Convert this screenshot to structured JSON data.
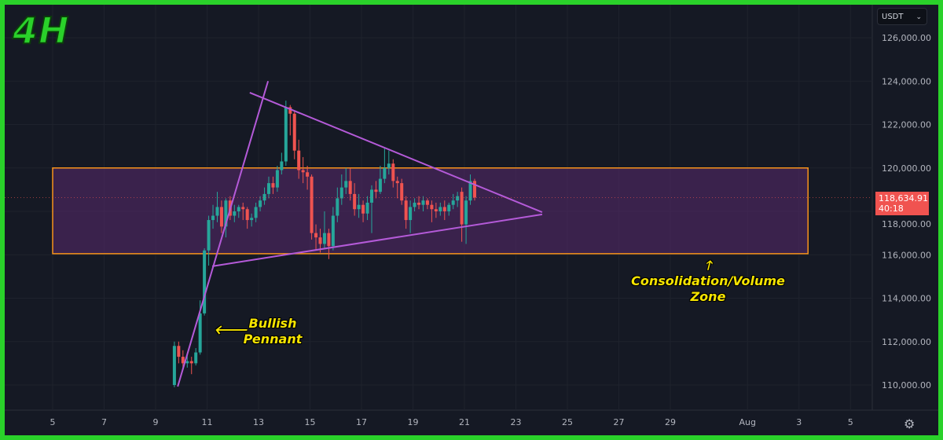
{
  "timeframe_label": "4H",
  "currency_selector": {
    "value": "USDT",
    "icon": "chevron-down-icon"
  },
  "price_badge": {
    "price": "118,634.91",
    "countdown": "40:18",
    "color": "#f05350"
  },
  "settings_icon": "gear-icon",
  "annotations": {
    "pennant": "Bullish Pennant",
    "zone_line1": "Consolidation/Volume",
    "zone_line2": "Zone"
  },
  "colors": {
    "up": "#26a69a",
    "down": "#ef5350",
    "pennant_lines": "#b45ad8",
    "zone_border": "#f7931a",
    "zone_fill": "#5a2a6e",
    "label": "#2ad12a",
    "annotation": "#f5e400"
  },
  "chart_data": {
    "type": "candlestick",
    "title": "",
    "ylim": [
      109500,
      127000
    ],
    "xlim": [
      3.1,
      36.5
    ],
    "y_ticks": [
      {
        "value": 110000,
        "label": "110,000.00"
      },
      {
        "value": 112000,
        "label": "112,000.00"
      },
      {
        "value": 114000,
        "label": "114,000.00"
      },
      {
        "value": 116000,
        "label": "116,000.00"
      },
      {
        "value": 118000,
        "label": "118,000.00"
      },
      {
        "value": 120000,
        "label": "120,000.00"
      },
      {
        "value": 122000,
        "label": "122,000.00"
      },
      {
        "value": 124000,
        "label": "124,000.00"
      },
      {
        "value": 126000,
        "label": "126,000.00"
      }
    ],
    "x_ticks": [
      {
        "day": 5,
        "label": "5"
      },
      {
        "day": 7,
        "label": "7"
      },
      {
        "day": 9,
        "label": "9"
      },
      {
        "day": 11,
        "label": "11"
      },
      {
        "day": 13,
        "label": "13"
      },
      {
        "day": 15,
        "label": "15"
      },
      {
        "day": 17,
        "label": "17"
      },
      {
        "day": 19,
        "label": "19"
      },
      {
        "day": 21,
        "label": "21"
      },
      {
        "day": 23,
        "label": "23"
      },
      {
        "day": 25,
        "label": "25"
      },
      {
        "day": 27,
        "label": "27"
      },
      {
        "day": 29,
        "label": "29"
      },
      {
        "day": 32,
        "label": "Aug"
      },
      {
        "day": 34,
        "label": "3"
      },
      {
        "day": 36,
        "label": "5"
      }
    ],
    "grid": true,
    "candle_start_day": 9.73,
    "candles_per_day": 6,
    "ohlc": [
      [
        110000,
        112000,
        109900,
        111800
      ],
      [
        111800,
        112000,
        111000,
        111300
      ],
      [
        111300,
        111600,
        110700,
        111000
      ],
      [
        111000,
        111400,
        110800,
        111100
      ],
      [
        111100,
        111300,
        110500,
        111000
      ],
      [
        111000,
        111700,
        110900,
        111500
      ],
      [
        111500,
        113900,
        111400,
        113300
      ],
      [
        113300,
        116300,
        113200,
        116200
      ],
      [
        116200,
        117800,
        115500,
        117600
      ],
      [
        117600,
        118300,
        117200,
        117800
      ],
      [
        117800,
        118900,
        117500,
        118200
      ],
      [
        118200,
        118500,
        117000,
        117300
      ],
      [
        117300,
        118600,
        116800,
        118500
      ],
      [
        118500,
        118700,
        117600,
        117800
      ],
      [
        117800,
        118300,
        117500,
        118000
      ],
      [
        118000,
        118300,
        117700,
        118200
      ],
      [
        118200,
        118400,
        117600,
        118100
      ],
      [
        118100,
        118200,
        117200,
        117600
      ],
      [
        117600,
        117900,
        117300,
        117700
      ],
      [
        117700,
        118400,
        117500,
        118200
      ],
      [
        118200,
        118700,
        118000,
        118500
      ],
      [
        118500,
        119100,
        118300,
        118800
      ],
      [
        118800,
        119600,
        118600,
        119300
      ],
      [
        119300,
        119600,
        118800,
        119100
      ],
      [
        119100,
        120100,
        118900,
        119900
      ],
      [
        119900,
        120700,
        119700,
        120300
      ],
      [
        120300,
        123100,
        120100,
        122800
      ],
      [
        122800,
        122900,
        121500,
        122500
      ],
      [
        122500,
        122600,
        120400,
        120800
      ],
      [
        120800,
        121300,
        119500,
        119900
      ],
      [
        119900,
        120500,
        119300,
        119800
      ],
      [
        119800,
        120100,
        119000,
        119600
      ],
      [
        119600,
        119700,
        116700,
        117000
      ],
      [
        117000,
        117400,
        116200,
        116800
      ],
      [
        116800,
        117200,
        116100,
        116500
      ],
      [
        116500,
        118000,
        116300,
        117000
      ],
      [
        117000,
        117200,
        115800,
        116400
      ],
      [
        116400,
        118200,
        116200,
        117800
      ],
      [
        117800,
        119100,
        117500,
        118600
      ],
      [
        118600,
        119700,
        118300,
        119100
      ],
      [
        119100,
        120000,
        118800,
        119400
      ],
      [
        119400,
        120000,
        118500,
        118800
      ],
      [
        118800,
        119300,
        117800,
        118100
      ],
      [
        118100,
        118800,
        117700,
        118300
      ],
      [
        118300,
        118500,
        117500,
        117900
      ],
      [
        117900,
        118700,
        117600,
        118400
      ],
      [
        118400,
        119200,
        117000,
        119000
      ],
      [
        119000,
        119400,
        118600,
        118900
      ],
      [
        118900,
        120100,
        118800,
        119500
      ],
      [
        119500,
        120900,
        119300,
        120000
      ],
      [
        120000,
        120800,
        119700,
        120200
      ],
      [
        120200,
        120400,
        119100,
        119400
      ],
      [
        119400,
        119600,
        118600,
        119300
      ],
      [
        119300,
        119500,
        118300,
        118500
      ],
      [
        118500,
        118700,
        117200,
        117600
      ],
      [
        117600,
        118500,
        117000,
        118200
      ],
      [
        118200,
        118600,
        118000,
        118400
      ],
      [
        118400,
        118700,
        118100,
        118300
      ],
      [
        118300,
        118700,
        118000,
        118500
      ],
      [
        118500,
        118600,
        118100,
        118300
      ],
      [
        118300,
        118500,
        117500,
        118100
      ],
      [
        118100,
        118400,
        117700,
        118000
      ],
      [
        118000,
        118400,
        117800,
        118200
      ],
      [
        118200,
        118500,
        117600,
        118000
      ],
      [
        118000,
        118400,
        117800,
        118300
      ],
      [
        118300,
        118800,
        118100,
        118500
      ],
      [
        118500,
        118900,
        118200,
        118700
      ],
      [
        118900,
        119100,
        116600,
        117400
      ],
      [
        117400,
        118700,
        116500,
        118500
      ],
      [
        118500,
        119700,
        118300,
        119400
      ],
      [
        119400,
        119500,
        118500,
        118635
      ]
    ],
    "drawings": {
      "flagpole": [
        [
          9.86,
          109930
        ],
        [
          13.37,
          124000
        ]
      ],
      "pennant_upper": [
        [
          12.66,
          123470
        ],
        [
          24.02,
          117960
        ]
      ],
      "pennant_lower": [
        [
          11.2,
          115470
        ],
        [
          24.02,
          117860
        ]
      ],
      "zone": {
        "from_day": 5,
        "to_day": 34.35,
        "low": 116050,
        "high": 120000
      }
    }
  }
}
